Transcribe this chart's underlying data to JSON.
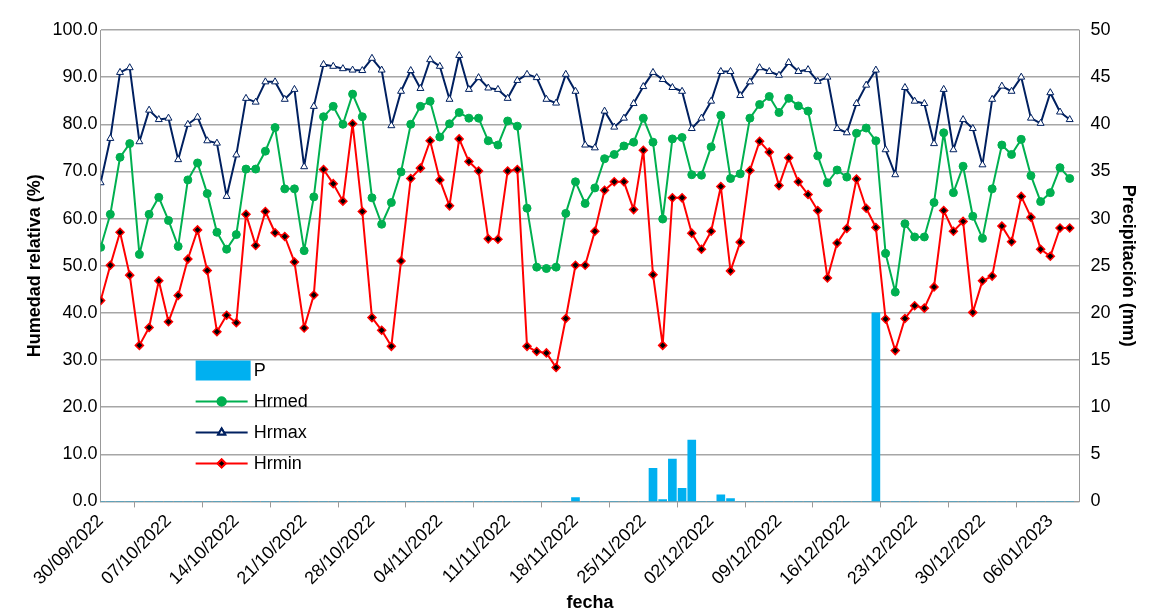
{
  "chart_data": {
    "type": "line",
    "xlabel": "fecha",
    "ylabel": "Humedad relativa (%)",
    "y2label": "Precipitación (mm)",
    "x": [
      "2022-09-30",
      "2022-10-01",
      "2022-10-02",
      "2022-10-03",
      "2022-10-04",
      "2022-10-05",
      "2022-10-06",
      "2022-10-07",
      "2022-10-08",
      "2022-10-09",
      "2022-10-10",
      "2022-10-11",
      "2022-10-12",
      "2022-10-13",
      "2022-10-14",
      "2022-10-15",
      "2022-10-16",
      "2022-10-17",
      "2022-10-18",
      "2022-10-19",
      "2022-10-20",
      "2022-10-21",
      "2022-10-22",
      "2022-10-23",
      "2022-10-24",
      "2022-10-25",
      "2022-10-26",
      "2022-10-27",
      "2022-10-28",
      "2022-10-29",
      "2022-10-30",
      "2022-10-31",
      "2022-11-01",
      "2022-11-02",
      "2022-11-03",
      "2022-11-04",
      "2022-11-05",
      "2022-11-06",
      "2022-11-07",
      "2022-11-08",
      "2022-11-09",
      "2022-11-10",
      "2022-11-11",
      "2022-11-12",
      "2022-11-13",
      "2022-11-14",
      "2022-11-15",
      "2022-11-16",
      "2022-11-17",
      "2022-11-18",
      "2022-11-19",
      "2022-11-20",
      "2022-11-21",
      "2022-11-22",
      "2022-11-23",
      "2022-11-24",
      "2022-11-25",
      "2022-11-26",
      "2022-11-27",
      "2022-11-28",
      "2022-11-29",
      "2022-11-30",
      "2022-12-01",
      "2022-12-02",
      "2022-12-03",
      "2022-12-04",
      "2022-12-05",
      "2022-12-06",
      "2022-12-07",
      "2022-12-08",
      "2022-12-09",
      "2022-12-10",
      "2022-12-11",
      "2022-12-12",
      "2022-12-13",
      "2022-12-14",
      "2022-12-15",
      "2022-12-16",
      "2022-12-17",
      "2022-12-18",
      "2022-12-19",
      "2022-12-20",
      "2022-12-21",
      "2022-12-22",
      "2022-12-23",
      "2022-12-24",
      "2022-12-25",
      "2022-12-26",
      "2022-12-27",
      "2022-12-28",
      "2022-12-29",
      "2022-12-30",
      "2022-12-31",
      "2023-01-01",
      "2023-01-02",
      "2023-01-03",
      "2023-01-04",
      "2023-01-05",
      "2023-01-06",
      "2023-01-07",
      "2023-01-08"
    ],
    "xlim": [
      "2022-09-30",
      "2023-01-09"
    ],
    "xticks": [
      {
        "value": "2022-09-30",
        "label": "30/09/2022"
      },
      {
        "value": "2022-10-07",
        "label": "07/10/2022"
      },
      {
        "value": "2022-10-14",
        "label": "14/10/2022"
      },
      {
        "value": "2022-10-21",
        "label": "21/10/2022"
      },
      {
        "value": "2022-10-28",
        "label": "28/10/2022"
      },
      {
        "value": "2022-11-04",
        "label": "04/11/2022"
      },
      {
        "value": "2022-11-11",
        "label": "11/11/2022"
      },
      {
        "value": "2022-11-18",
        "label": "18/11/2022"
      },
      {
        "value": "2022-11-25",
        "label": "25/11/2022"
      },
      {
        "value": "2022-12-02",
        "label": "02/12/2022"
      },
      {
        "value": "2022-12-09",
        "label": "09/12/2022"
      },
      {
        "value": "2022-12-16",
        "label": "16/12/2022"
      },
      {
        "value": "2022-12-23",
        "label": "23/12/2022"
      },
      {
        "value": "2022-12-30",
        "label": "30/12/2022"
      },
      {
        "value": "2023-01-06",
        "label": "06/01/2023"
      }
    ],
    "ylim": [
      0,
      100
    ],
    "yticks": [
      {
        "value": 0,
        "label": "0.0"
      },
      {
        "value": 10,
        "label": "10.0"
      },
      {
        "value": 20,
        "label": "20.0"
      },
      {
        "value": 30,
        "label": "30.0"
      },
      {
        "value": 40,
        "label": "40.0"
      },
      {
        "value": 50,
        "label": "50.0"
      },
      {
        "value": 60,
        "label": "60.0"
      },
      {
        "value": 70,
        "label": "70.0"
      },
      {
        "value": 80,
        "label": "80.0"
      },
      {
        "value": 90,
        "label": "90.0"
      },
      {
        "value": 100,
        "label": "100.0"
      }
    ],
    "y2lim": [
      0,
      50
    ],
    "y2ticks": [
      0,
      5,
      10,
      15,
      20,
      25,
      30,
      35,
      40,
      45,
      50
    ],
    "grid": "y",
    "legend": "bottom left",
    "series": [
      {
        "name": "P",
        "type": "bar",
        "axis": "y2",
        "color": "#00b0f0",
        "values": [
          0,
          0,
          0,
          0,
          0,
          0,
          0,
          0,
          0,
          0,
          0,
          0,
          0,
          0,
          0,
          0,
          0,
          0,
          0,
          0,
          0,
          0,
          0,
          0,
          0,
          0,
          0,
          0,
          0,
          0,
          0,
          0,
          0,
          0,
          0,
          0,
          0,
          0,
          0,
          0,
          0,
          0,
          0,
          0,
          0,
          0,
          0,
          0,
          0,
          0.4,
          0,
          0,
          0,
          0,
          0,
          0,
          0,
          3.5,
          0.2,
          4.5,
          1.4,
          6.5,
          0,
          0,
          0.7,
          0.3,
          0,
          0,
          0,
          0,
          0,
          0,
          0,
          0,
          0,
          0,
          0,
          0,
          0,
          0,
          20,
          0,
          0,
          0,
          0,
          0,
          0,
          0,
          0,
          0,
          0,
          0,
          0,
          0,
          0,
          0,
          0,
          0,
          0,
          0,
          0
        ]
      },
      {
        "name": "Hrmed",
        "color": "#00b050",
        "marker": "circle",
        "values": [
          53.9,
          60.9,
          73,
          75.9,
          52.4,
          60.9,
          64.5,
          59.6,
          54.1,
          68.2,
          71.8,
          65.3,
          57.1,
          53.5,
          56.6,
          70.5,
          70.5,
          74.3,
          79.3,
          66.3,
          66.3,
          53.2,
          64.6,
          81.6,
          83.8,
          80,
          86.4,
          81.6,
          64.4,
          58.8,
          63.4,
          69.9,
          80,
          83.8,
          84.9,
          77.3,
          80.1,
          82.5,
          81.3,
          81.3,
          76.5,
          75.6,
          80.7,
          79.6,
          62.2,
          49.7,
          49.4,
          49.7,
          61.1,
          67.8,
          63.2,
          66.5,
          72.7,
          73.6,
          75.4,
          76.2,
          81.3,
          76.2,
          59.9,
          76.9,
          77.2,
          69.3,
          69.2,
          75.2,
          81.9,
          68.5,
          69.5,
          81.3,
          84.2,
          85.9,
          82.5,
          85.5,
          83.9,
          82.8,
          73.3,
          67.6,
          70.3,
          68.8,
          78.1,
          79.2,
          76.5,
          52.6,
          44.4,
          58.9,
          56.1,
          56.1,
          63.4,
          78.2,
          65.5,
          71.1,
          60.5,
          55.8,
          66.3,
          75.6,
          73.6,
          76.8,
          69.1,
          63.6,
          65.5,
          70.8,
          68.5
        ]
      },
      {
        "name": "Hrmax",
        "color": "#002060",
        "marker": "triangle",
        "values": [
          67.6,
          77,
          91,
          92,
          76.3,
          83,
          81,
          81.3,
          72.5,
          80,
          81.5,
          76.5,
          76,
          64.7,
          73.5,
          85.5,
          84.7,
          89,
          89,
          85.3,
          87.4,
          71,
          83.8,
          92.7,
          92.3,
          91.8,
          91.5,
          91.4,
          94,
          91.5,
          79.7,
          87,
          91.4,
          87.6,
          93.7,
          92.3,
          85.3,
          94.6,
          87.4,
          89.9,
          87.7,
          87.4,
          85.5,
          89.3,
          90.6,
          89.9,
          85.3,
          84.5,
          90.6,
          87,
          75.6,
          75,
          82.8,
          79.4,
          81.3,
          84.4,
          88,
          91,
          89.5,
          87.8,
          87,
          79.1,
          81.3,
          84.9,
          91.2,
          91.2,
          86.1,
          89,
          92,
          91.2,
          90.4,
          93.1,
          91.2,
          91.6,
          89.1,
          90,
          79.1,
          78.2,
          84.4,
          88.3,
          91.5,
          74.6,
          69.3,
          87.8,
          84.9,
          84.4,
          75.9,
          87.4,
          74.6,
          81,
          79.1,
          71.4,
          85.3,
          88.1,
          87,
          90,
          81.3,
          80.2,
          86.7,
          82.6,
          81
        ]
      },
      {
        "name": "Hrmin",
        "color": "#ff0000",
        "marker": "diamond",
        "values": [
          42.6,
          50.1,
          57.1,
          48,
          33.1,
          36.9,
          46.8,
          38.1,
          43.7,
          51.4,
          57.6,
          49,
          36,
          39.5,
          37.9,
          60.9,
          54.3,
          61.5,
          57,
          56.2,
          50.8,
          36.8,
          43.8,
          70.4,
          67.4,
          63.7,
          80.1,
          61.5,
          39,
          36.3,
          32.9,
          51,
          68.5,
          70.7,
          76.5,
          68.2,
          62.7,
          76.9,
          72.1,
          70.1,
          55.7,
          55.6,
          70.1,
          70.4,
          32.9,
          31.8,
          31.5,
          28.4,
          38.8,
          50.1,
          50.1,
          57.3,
          66,
          67.8,
          67.8,
          61.9,
          74.5,
          48.1,
          33.1,
          64.4,
          64.4,
          56.9,
          53.5,
          57.3,
          66.8,
          48.9,
          55,
          70.2,
          76.4,
          74.1,
          67,
          72.9,
          67.8,
          65.1,
          61.7,
          47.4,
          54.8,
          57.9,
          68.4,
          62.2,
          58.1,
          38.7,
          32,
          38.8,
          41.5,
          41,
          45.5,
          61.7,
          57.3,
          59.4,
          40.1,
          46.8,
          47.8,
          58.4,
          55.1,
          64.7,
          60.3,
          53.5,
          52,
          58,
          58
        ]
      }
    ]
  }
}
